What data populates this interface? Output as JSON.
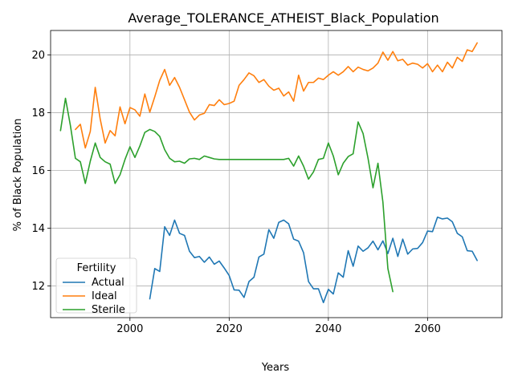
{
  "chart_data": {
    "type": "line",
    "title": "Average_TOLERANCE_ATHEIST_Black_Population",
    "xlabel": "Years",
    "ylabel": "% of Black Population",
    "xlim": [
      1984,
      2075
    ],
    "ylim": [
      10.9,
      20.85
    ],
    "xticks": [
      2000,
      2020,
      2040,
      2060
    ],
    "yticks": [
      12,
      14,
      16,
      18,
      20
    ],
    "grid": true,
    "legend": {
      "title": "Fertility",
      "position": "lower-left"
    },
    "series": [
      {
        "name": "Actual",
        "color": "#1f77b4",
        "x": [
          2004,
          2005,
          2006,
          2007,
          2008,
          2009,
          2010,
          2011,
          2012,
          2013,
          2014,
          2015,
          2016,
          2017,
          2018,
          2019,
          2020,
          2021,
          2022,
          2023,
          2024,
          2025,
          2026,
          2027,
          2028,
          2029,
          2030,
          2031,
          2032,
          2033,
          2034,
          2035,
          2036,
          2037,
          2038,
          2039,
          2040,
          2041,
          2042,
          2043,
          2044,
          2045,
          2046,
          2047,
          2048,
          2049,
          2050,
          2051,
          2052,
          2053,
          2054,
          2055,
          2056,
          2057,
          2058,
          2059,
          2060,
          2061,
          2062,
          2063,
          2064,
          2065,
          2066,
          2067,
          2068,
          2069,
          2070
        ],
        "y": [
          11.55,
          12.6,
          12.5,
          14.05,
          13.75,
          14.28,
          13.82,
          13.75,
          13.2,
          12.98,
          13.02,
          12.82,
          13.0,
          12.75,
          12.86,
          12.62,
          12.36,
          11.86,
          11.85,
          11.6,
          12.15,
          12.3,
          13.0,
          13.1,
          13.95,
          13.65,
          14.2,
          14.28,
          14.15,
          13.62,
          13.55,
          13.15,
          12.15,
          11.9,
          11.9,
          11.42,
          11.88,
          11.72,
          12.45,
          12.3,
          13.22,
          12.68,
          13.38,
          13.2,
          13.32,
          13.55,
          13.25,
          13.56,
          13.12,
          13.65,
          13.02,
          13.62,
          13.1,
          13.28,
          13.3,
          13.5,
          13.9,
          13.88,
          14.38,
          14.32,
          14.35,
          14.22,
          13.82,
          13.7,
          13.22,
          13.2,
          12.88
        ]
      },
      {
        "name": "Ideal",
        "color": "#ff7f0e",
        "x": [
          1989,
          1990,
          1991,
          1992,
          1993,
          1994,
          1995,
          1996,
          1997,
          1998,
          1999,
          2000,
          2001,
          2002,
          2003,
          2004,
          2005,
          2006,
          2007,
          2008,
          2009,
          2010,
          2011,
          2012,
          2013,
          2014,
          2015,
          2016,
          2017,
          2018,
          2019,
          2020,
          2021,
          2022,
          2023,
          2024,
          2025,
          2026,
          2027,
          2028,
          2029,
          2030,
          2031,
          2032,
          2033,
          2034,
          2035,
          2036,
          2037,
          2038,
          2039,
          2040,
          2041,
          2042,
          2043,
          2044,
          2045,
          2046,
          2047,
          2048,
          2049,
          2050,
          2051,
          2052,
          2053,
          2054,
          2055,
          2056,
          2057,
          2058,
          2059,
          2060,
          2061,
          2062,
          2063,
          2064,
          2065,
          2066,
          2067,
          2068,
          2069,
          2070
        ],
        "y": [
          17.42,
          17.6,
          16.78,
          17.35,
          18.88,
          17.78,
          16.95,
          17.38,
          17.2,
          18.2,
          17.62,
          18.18,
          18.1,
          17.88,
          18.65,
          18.02,
          18.55,
          19.12,
          19.5,
          18.95,
          19.22,
          18.88,
          18.45,
          18.02,
          17.75,
          17.92,
          17.98,
          18.28,
          18.25,
          18.45,
          18.28,
          18.32,
          18.4,
          18.95,
          19.15,
          19.38,
          19.28,
          19.05,
          19.15,
          18.92,
          18.78,
          18.85,
          18.58,
          18.72,
          18.4,
          19.3,
          18.75,
          19.05,
          19.05,
          19.2,
          19.15,
          19.3,
          19.42,
          19.3,
          19.42,
          19.6,
          19.42,
          19.58,
          19.5,
          19.45,
          19.55,
          19.72,
          20.1,
          19.82,
          20.12,
          19.8,
          19.85,
          19.65,
          19.72,
          19.68,
          19.55,
          19.7,
          19.42,
          19.65,
          19.42,
          19.75,
          19.55,
          19.92,
          19.78,
          20.18,
          20.12,
          20.42
        ]
      },
      {
        "name": "Sterile",
        "color": "#2ca02c",
        "x": [
          1986,
          1987,
          1988,
          1989,
          1990,
          1991,
          1992,
          1993,
          1994,
          1995,
          1996,
          1997,
          1998,
          1999,
          2000,
          2001,
          2002,
          2003,
          2004,
          2005,
          2006,
          2007,
          2008,
          2009,
          2010,
          2011,
          2012,
          2013,
          2014,
          2015,
          2016,
          2017,
          2018,
          2019,
          2020,
          2021,
          2022,
          2023,
          2024,
          2025,
          2026,
          2027,
          2028,
          2029,
          2030,
          2031,
          2032,
          2033,
          2034,
          2035,
          2036,
          2037,
          2038,
          2039,
          2040,
          2041,
          2042,
          2043,
          2044,
          2045,
          2046,
          2047,
          2048,
          2049,
          2050,
          2051,
          2052,
          2053
        ],
        "y": [
          17.38,
          18.5,
          17.55,
          16.42,
          16.3,
          15.55,
          16.32,
          16.95,
          16.45,
          16.3,
          16.22,
          15.55,
          15.85,
          16.38,
          16.82,
          16.45,
          16.85,
          17.32,
          17.42,
          17.35,
          17.18,
          16.72,
          16.42,
          16.3,
          16.32,
          16.25,
          16.4,
          16.42,
          16.38,
          16.5,
          16.45,
          16.4,
          16.38,
          16.38,
          16.38,
          16.38,
          16.38,
          16.38,
          16.38,
          16.38,
          16.38,
          16.38,
          16.38,
          16.38,
          16.38,
          16.38,
          16.42,
          16.15,
          16.5,
          16.15,
          15.7,
          15.95,
          16.38,
          16.42,
          16.95,
          16.5,
          15.85,
          16.25,
          16.48,
          16.58,
          17.68,
          17.28,
          16.42,
          15.4,
          16.25,
          14.9,
          12.6,
          11.8
        ]
      }
    ]
  }
}
